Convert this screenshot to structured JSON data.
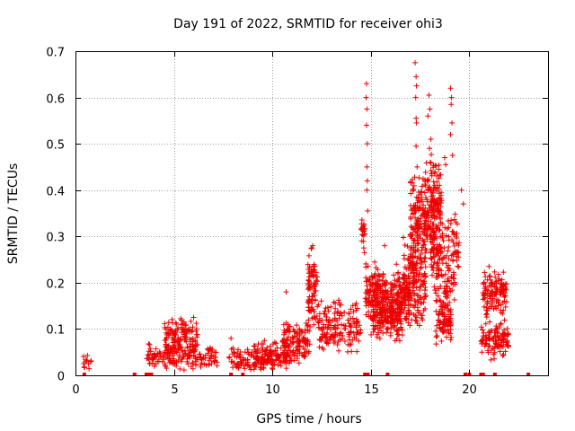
{
  "chart_data": {
    "type": "scatter",
    "title": "Day 191 of 2022, SRMTID for receiver ohi3",
    "xlabel": "GPS time / hours",
    "ylabel": "SRMTID / TECUs",
    "xlim": [
      0,
      24
    ],
    "ylim": [
      0,
      0.7
    ],
    "xticks": [
      0,
      5,
      10,
      15,
      20
    ],
    "yticks": [
      0,
      0.1,
      0.2,
      0.3,
      0.4,
      0.5,
      0.6,
      0.7
    ],
    "grid": true,
    "marker": "plus",
    "color": "#ee0000",
    "clusters": [
      {
        "x": [
          0.4,
          0.8
        ],
        "y": [
          0.01,
          0.05
        ]
      },
      {
        "x": [
          3.6,
          7.2
        ],
        "y": [
          0.01,
          0.07
        ]
      },
      {
        "x": [
          4.5,
          6.2
        ],
        "y": [
          0.03,
          0.125
        ]
      },
      {
        "x": [
          7.8,
          10.0
        ],
        "y": [
          0.01,
          0.06
        ]
      },
      {
        "x": [
          9.0,
          10.8
        ],
        "y": [
          0.01,
          0.08
        ]
      },
      {
        "x": [
          10.5,
          11.9
        ],
        "y": [
          0.02,
          0.12
        ]
      },
      {
        "x": [
          11.8,
          12.3
        ],
        "y": [
          0.1,
          0.28
        ]
      },
      {
        "x": [
          12.3,
          14.5
        ],
        "y": [
          0.04,
          0.17
        ]
      },
      {
        "x": [
          14.5,
          14.7
        ],
        "y": [
          0.25,
          0.37
        ]
      },
      {
        "x": [
          14.7,
          15.7
        ],
        "y": [
          0.1,
          0.25
        ]
      },
      {
        "x": [
          15.0,
          16.6
        ],
        "y": [
          0.07,
          0.18
        ]
      },
      {
        "x": [
          15.7,
          17.0
        ],
        "y": [
          0.1,
          0.23
        ]
      },
      {
        "x": [
          16.6,
          17.8
        ],
        "y": [
          0.1,
          0.3
        ]
      },
      {
        "x": [
          17.0,
          17.8
        ],
        "y": [
          0.2,
          0.45
        ]
      },
      {
        "x": [
          17.8,
          18.6
        ],
        "y": [
          0.25,
          0.48
        ]
      },
      {
        "x": [
          18.0,
          19.5
        ],
        "y": [
          0.15,
          0.38
        ]
      },
      {
        "x": [
          18.3,
          19.1
        ],
        "y": [
          0.06,
          0.2
        ]
      },
      {
        "x": [
          20.6,
          22.0
        ],
        "y": [
          0.03,
          0.12
        ]
      },
      {
        "x": [
          20.7,
          21.9
        ],
        "y": [
          0.12,
          0.23
        ]
      }
    ],
    "scattered_points": [
      {
        "x": 14.78,
        "y": 0.63
      },
      {
        "x": 14.8,
        "y": 0.575
      },
      {
        "x": 14.78,
        "y": 0.54
      },
      {
        "x": 14.82,
        "y": 0.5
      },
      {
        "x": 14.8,
        "y": 0.45
      },
      {
        "x": 14.82,
        "y": 0.42
      },
      {
        "x": 14.8,
        "y": 0.4
      },
      {
        "x": 14.84,
        "y": 0.355
      },
      {
        "x": 14.76,
        "y": 0.6
      },
      {
        "x": 17.25,
        "y": 0.675
      },
      {
        "x": 17.3,
        "y": 0.645
      },
      {
        "x": 17.32,
        "y": 0.625
      },
      {
        "x": 17.28,
        "y": 0.6
      },
      {
        "x": 17.3,
        "y": 0.555
      },
      {
        "x": 17.32,
        "y": 0.545
      },
      {
        "x": 17.95,
        "y": 0.605
      },
      {
        "x": 18.0,
        "y": 0.575
      },
      {
        "x": 17.9,
        "y": 0.56
      },
      {
        "x": 18.05,
        "y": 0.51
      },
      {
        "x": 17.98,
        "y": 0.49
      },
      {
        "x": 18.02,
        "y": 0.46
      },
      {
        "x": 19.05,
        "y": 0.62
      },
      {
        "x": 19.1,
        "y": 0.6
      },
      {
        "x": 19.08,
        "y": 0.585
      },
      {
        "x": 19.12,
        "y": 0.545
      },
      {
        "x": 19.05,
        "y": 0.52
      },
      {
        "x": 19.15,
        "y": 0.475
      },
      {
        "x": 17.3,
        "y": 0.495
      },
      {
        "x": 17.35,
        "y": 0.45
      },
      {
        "x": 18.75,
        "y": 0.47
      },
      {
        "x": 18.8,
        "y": 0.455
      },
      {
        "x": 19.6,
        "y": 0.4
      },
      {
        "x": 19.7,
        "y": 0.37
      },
      {
        "x": 12.0,
        "y": 0.275
      },
      {
        "x": 12.05,
        "y": 0.28
      },
      {
        "x": 10.7,
        "y": 0.18
      },
      {
        "x": 6.0,
        "y": 0.125
      },
      {
        "x": 7.9,
        "y": 0.08
      },
      {
        "x": 15.7,
        "y": 0.28
      },
      {
        "x": 16.3,
        "y": 0.24
      },
      {
        "x": 21.0,
        "y": 0.235
      },
      {
        "x": 21.05,
        "y": 0.215
      }
    ],
    "zero_markers": [
      0.45,
      3.0,
      3.6,
      3.75,
      3.85,
      7.9,
      8.5,
      14.7,
      14.85,
      15.85,
      19.8,
      20.0,
      20.6,
      20.7,
      21.3,
      23.0
    ]
  }
}
